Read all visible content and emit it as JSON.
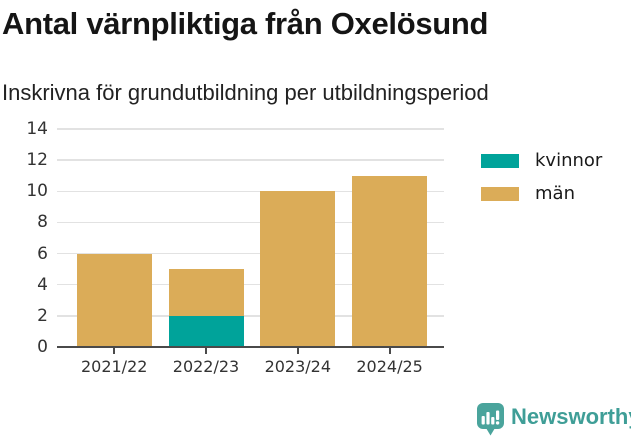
{
  "header": {
    "title": "Antal värnpliktiga från Oxelösund",
    "subtitle": "Inskrivna för grundutbildning per utbildningsperiod"
  },
  "chart_data": {
    "type": "bar",
    "stacked": true,
    "title": "Antal värnpliktiga från Oxelösund",
    "subtitle": "Inskrivna för grundutbildning per utbildningsperiod",
    "categories": [
      "2021/22",
      "2022/23",
      "2023/24",
      "2024/25"
    ],
    "series": [
      {
        "name": "kvinnor",
        "color": "#00a39a",
        "values": [
          0,
          2,
          0,
          0
        ]
      },
      {
        "name": "män",
        "color": "#dbac58",
        "values": [
          6,
          3,
          10,
          11
        ]
      }
    ],
    "xlabel": "",
    "ylabel": "",
    "ylim": [
      0,
      14
    ],
    "yticks": [
      0,
      2,
      4,
      6,
      8,
      10,
      12,
      14
    ],
    "grid": true,
    "legend_position": "right"
  },
  "footer": {
    "brand": "Newsworthy",
    "logo_icon": "bar-chart-speech-bubble-icon"
  },
  "colors": {
    "kvinnor": "#00a39a",
    "man": "#dbac58",
    "grid": "#e2e2e2",
    "axis": "#4a4a4a",
    "tick_text": "#333333",
    "title_text": "#151515",
    "brand_text": "#3f9e97",
    "logo_fill": "#4aa49c"
  }
}
